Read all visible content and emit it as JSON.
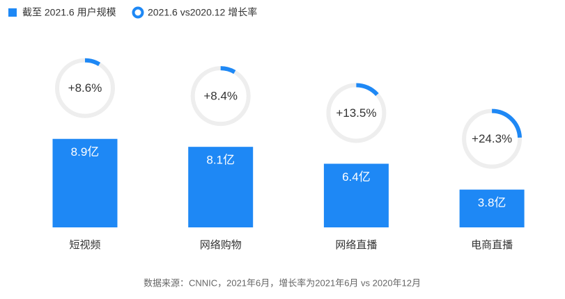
{
  "chart_data": {
    "type": "bar",
    "categories": [
      "短视频",
      "网络购物",
      "网络直播",
      "电商直播"
    ],
    "series": [
      {
        "name": "截至 2021.6 用户规模",
        "color": "#1e88f5",
        "values": [
          8.9,
          8.1,
          6.4,
          3.8
        ],
        "value_labels": [
          "8.9亿",
          "8.1亿",
          "6.4亿",
          "3.8亿"
        ]
      },
      {
        "name": "2021.6 vs2020.12 增长率",
        "color": "#1e88f5",
        "values": [
          8.6,
          8.4,
          13.5,
          24.3
        ],
        "value_labels": [
          "+8.6%",
          "+8.4%",
          "+13.5%",
          "+24.3%"
        ]
      }
    ],
    "source": "数据来源：CNNIC，2021年6月，增长率为2021年6月 vs 2020年12月"
  }
}
